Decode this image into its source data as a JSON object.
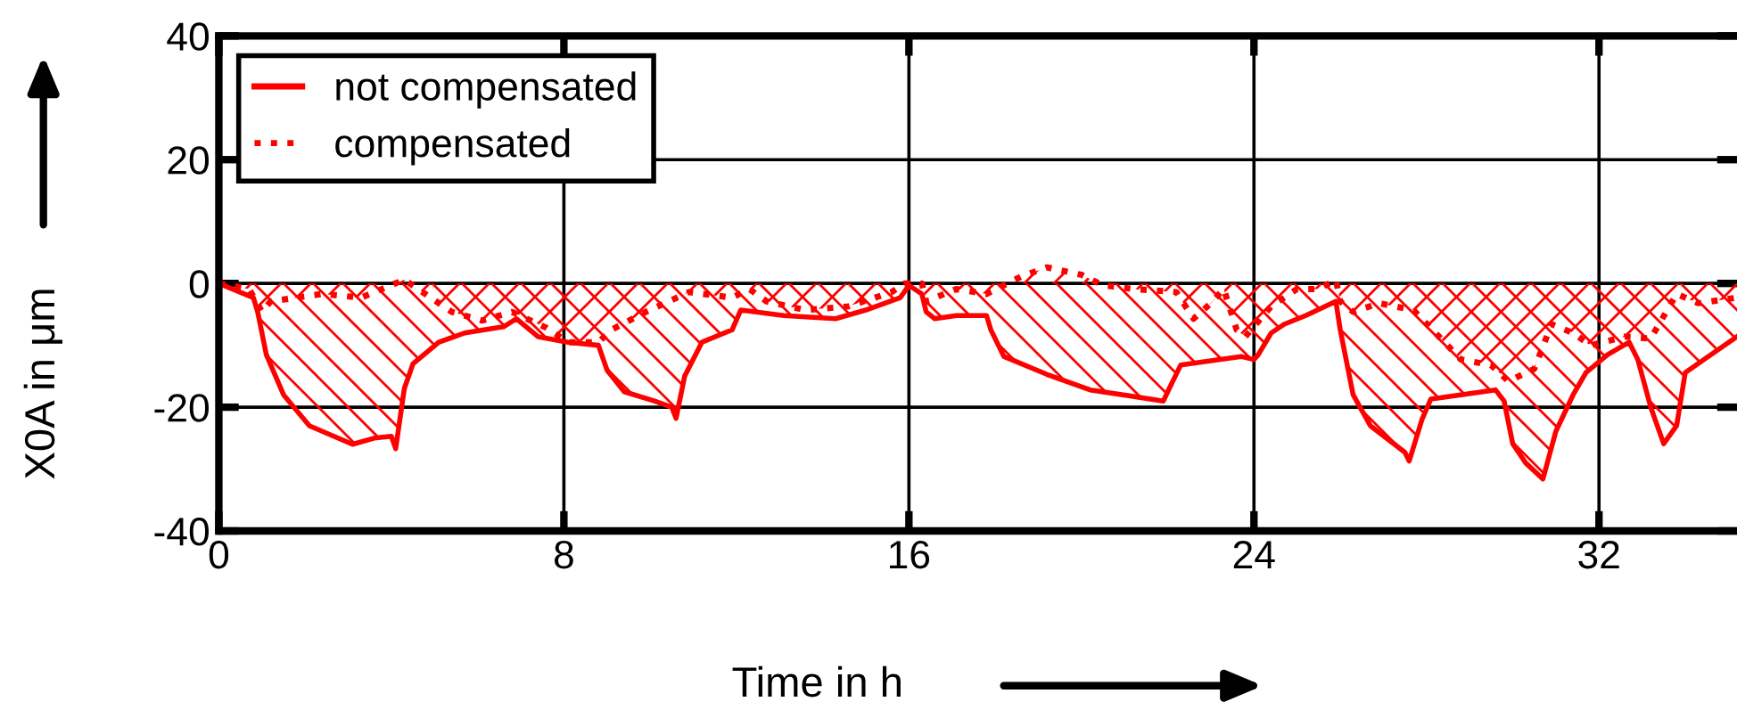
{
  "chart_data": {
    "type": "area",
    "xlabel": "Time in h",
    "ylabel": "X0A in μm",
    "xlim": [
      0,
      35.2
    ],
    "xticks": [
      0,
      8,
      16,
      24,
      32
    ],
    "ylim": [
      -40,
      40
    ],
    "yticks": [
      -40,
      -20,
      0,
      20,
      40
    ],
    "grid": true,
    "legend": "top left",
    "series": [
      {
        "name": "not compensated",
        "color": "#ff0000",
        "line_style": "solid",
        "x": [
          0,
          0.8,
          0.9,
          1.1,
          1.5,
          2.1,
          3.1,
          3.6,
          4.0,
          4.1,
          4.3,
          4.5,
          5.1,
          5.7,
          6.6,
          6.9,
          7.4,
          8.1,
          8.8,
          9.0,
          9.4,
          10.1,
          10.5,
          10.6,
          10.8,
          11.2,
          11.9,
          12.1,
          13.1,
          14.3,
          15.0,
          15.8,
          16.0,
          16.3,
          16.4,
          16.6,
          17.1,
          17.8,
          17.9,
          18.2,
          19.2,
          20.2,
          21.9,
          22.0,
          22.3,
          23.7,
          24.0,
          24.1,
          24.4,
          24.7,
          25.2,
          25.9,
          26.0,
          26.3,
          26.7,
          27.5,
          27.6,
          27.9,
          28.1,
          29.6,
          29.8,
          30.0,
          30.3,
          30.7,
          31.0,
          31.4,
          31.7,
          32.2,
          32.7,
          32.9,
          33.2,
          33.5,
          33.8,
          34.0,
          34.6,
          35.2
        ],
        "values": [
          0,
          -2.3,
          -4.6,
          -11.5,
          -18,
          -23,
          -26,
          -25,
          -24.7,
          -26.7,
          -17,
          -13,
          -9.5,
          -8,
          -7,
          -5.7,
          -8.6,
          -9.5,
          -10,
          -14,
          -17.5,
          -19,
          -20,
          -21.8,
          -15,
          -9.5,
          -7.5,
          -4.3,
          -5.2,
          -5.7,
          -4.3,
          -2.3,
          -0.3,
          -1.7,
          -4.6,
          -5.7,
          -5.2,
          -5.2,
          -7.5,
          -11.8,
          -14.7,
          -17.2,
          -19,
          -17.5,
          -13.2,
          -11.8,
          -12.3,
          -11.5,
          -8,
          -6.6,
          -5.2,
          -2.9,
          -7.5,
          -18,
          -23,
          -27.3,
          -28.7,
          -21.9,
          -18.7,
          -17.2,
          -19,
          -25.9,
          -29,
          -31.6,
          -23.9,
          -18,
          -14.4,
          -11.5,
          -9.5,
          -12.3,
          -20,
          -25.9,
          -23,
          -14.4,
          -11.5,
          -8.6
        ]
      },
      {
        "name": "compensated",
        "color": "#ff0000",
        "line_style": "dotted",
        "x": [
          0,
          0.7,
          1.0,
          1.2,
          2.4,
          3.3,
          4.3,
          5.4,
          6.1,
          6.8,
          7.6,
          8.1,
          8.8,
          9.1,
          9.9,
          10.9,
          11.9,
          12.3,
          12.7,
          13.6,
          14.6,
          15.6,
          15.9,
          16.3,
          16.4,
          17.1,
          17.8,
          18.6,
          19.2,
          20.0,
          20.5,
          21.2,
          22.2,
          22.6,
          23.0,
          23.3,
          23.6,
          23.8,
          24.4,
          25.0,
          25.5,
          25.9,
          26.0,
          26.3,
          26.9,
          27.7,
          28.8,
          29.5,
          29.9,
          30.5,
          30.9,
          31.4,
          31.8,
          32.6,
          33.2,
          33.8,
          34.3,
          35.2
        ],
        "values": [
          0,
          -0.9,
          -4.6,
          -2.9,
          -1.7,
          -2.3,
          0.6,
          -4.6,
          -6,
          -4.6,
          -7.2,
          -9.5,
          -9.5,
          -7.5,
          -4.6,
          -1.4,
          -2.3,
          -0.9,
          -2.9,
          -4.3,
          -3.7,
          -1.4,
          0,
          0,
          -2.9,
          -0.9,
          -1.7,
          1.1,
          2.6,
          1.4,
          -0.3,
          -0.9,
          -1.4,
          -5.7,
          -3.2,
          -0.9,
          -7.5,
          -8.6,
          -3.7,
          -0.9,
          -0.9,
          0.6,
          -2.9,
          -4.6,
          -3.2,
          -4.3,
          -12.3,
          -13.2,
          -15.8,
          -13.8,
          -6.6,
          -8,
          -10,
          -8.6,
          -8.9,
          -1.7,
          -3.2,
          -2.3
        ]
      }
    ]
  }
}
